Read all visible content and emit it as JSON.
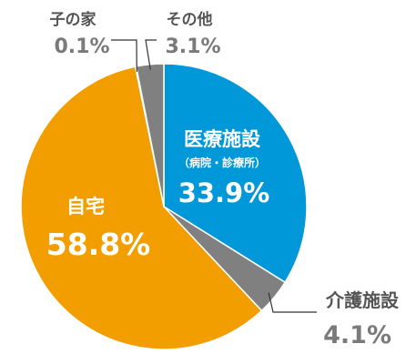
{
  "colors": {
    "medical": "#0098d9",
    "care": "#808080",
    "home": "#f29e00",
    "child": "#c8c8c8",
    "other": "#808080",
    "leader": "#333333",
    "text_dark": "#555555",
    "text_gray": "#7a7a7a"
  },
  "chart_data": {
    "type": "pie",
    "title": "",
    "slices": [
      {
        "label": "医療施設",
        "sublabel": "（病院・診療所）",
        "value": 33.9,
        "value_label": "33.9%",
        "color": "#0098d9"
      },
      {
        "label": "介護施設",
        "value": 4.1,
        "value_label": "4.1%",
        "color": "#808080"
      },
      {
        "label": "自宅",
        "value": 58.8,
        "value_label": "58.8%",
        "color": "#f29e00"
      },
      {
        "label": "子の家",
        "value": 0.1,
        "value_label": "0.1%",
        "color": "#c8c8c8"
      },
      {
        "label": "その他",
        "value": 3.1,
        "value_label": "3.1%",
        "color": "#808080"
      }
    ],
    "start": "12 o'clock",
    "direction": "clockwise"
  }
}
